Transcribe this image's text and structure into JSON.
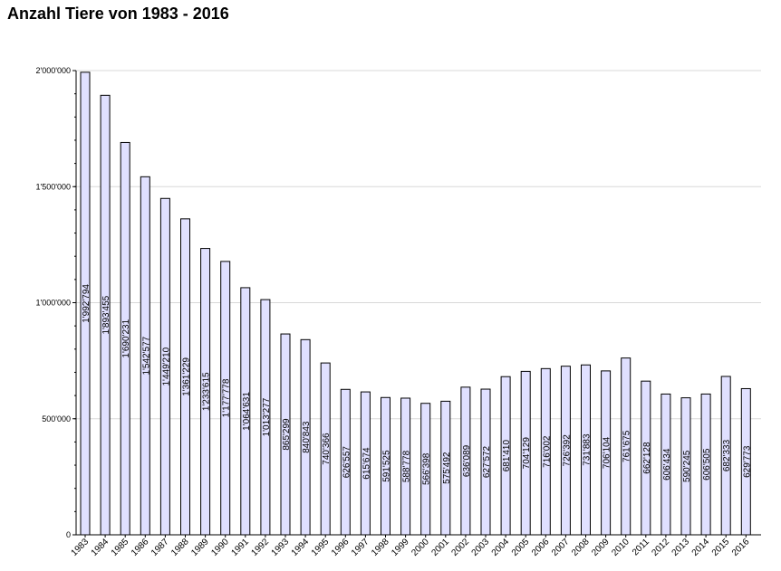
{
  "chart_data": {
    "type": "bar",
    "title": "Anzahl Tiere von 1983 - 2016",
    "xlabel": "",
    "ylabel": "",
    "ylim": [
      0,
      2000000
    ],
    "grid": true,
    "bar_color": "#e0e0ff",
    "bar_border": "#000000",
    "yticks": [
      0,
      500000,
      1000000,
      1500000,
      2000000
    ],
    "ytick_labels": [
      "0",
      "500'000",
      "1'000'000",
      "1'500'000",
      "2'000'000"
    ],
    "categories": [
      "1983",
      "1984",
      "1985",
      "1986",
      "1987",
      "1988",
      "1989",
      "1990",
      "1991",
      "1992",
      "1993",
      "1994",
      "1995",
      "1996",
      "1997",
      "1998",
      "1999",
      "2000",
      "2001",
      "2002",
      "2003",
      "2004",
      "2005",
      "2006",
      "2007",
      "2008",
      "2009",
      "2010",
      "2011",
      "2012",
      "2013",
      "2014",
      "2015",
      "2016"
    ],
    "values": [
      1992794,
      1893455,
      1690231,
      1542577,
      1449210,
      1361229,
      1233615,
      1177778,
      1064631,
      1013277,
      865299,
      840843,
      740366,
      626557,
      615674,
      591525,
      588778,
      566398,
      575492,
      636089,
      627572,
      681410,
      704129,
      716002,
      726392,
      731883,
      706104,
      761675,
      662128,
      606434,
      590245,
      606505,
      682333,
      629773
    ],
    "value_labels": [
      "1'992'794",
      "1'893'455",
      "1'690'231",
      "1'542'577",
      "1'449'210",
      "1'361'229",
      "1'233'615",
      "1'177'778",
      "1'064'631",
      "1'013'277",
      "865'299",
      "840'843",
      "740'366",
      "626'557",
      "615'674",
      "591'525",
      "588'778",
      "566'398",
      "575'492",
      "636'089",
      "627'572",
      "681'410",
      "704'129",
      "716'002",
      "726'392",
      "731'883",
      "706'104",
      "761'675",
      "662'128",
      "606'434",
      "590'245",
      "606'505",
      "682'333",
      "629'773"
    ]
  }
}
